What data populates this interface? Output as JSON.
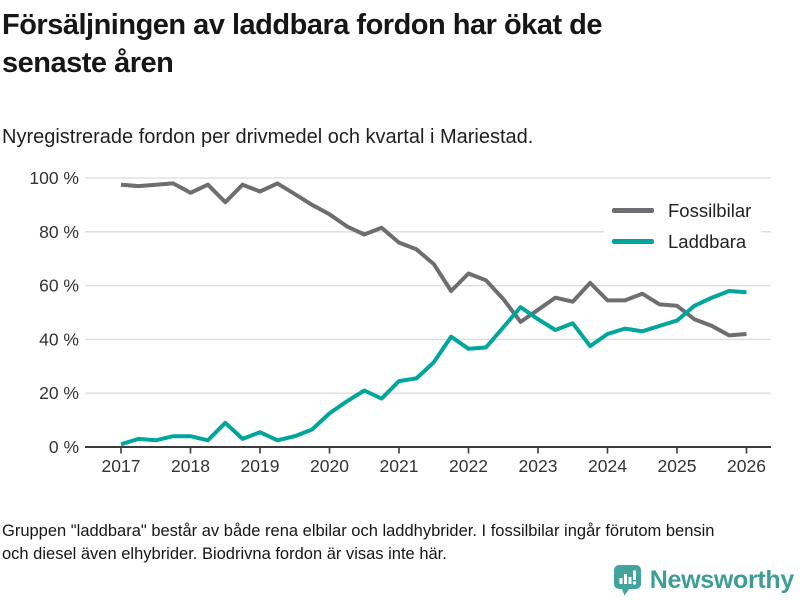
{
  "header": {
    "title_line1": "Försäljningen av laddbara fordon har ökat de",
    "title_line2": "senaste åren",
    "subtitle": "Nyregistrerade fordon per drivmedel och kvartal i Mariestad."
  },
  "chart_data": {
    "type": "line",
    "x": {
      "start": "2017 Q1",
      "end": "2026 Q1",
      "step": "quarter"
    },
    "x_tick_labels": [
      "2017",
      "2018",
      "2019",
      "2020",
      "2021",
      "2022",
      "2023",
      "2024",
      "2025",
      "2026"
    ],
    "y_ticks": [
      {
        "label": "100 %",
        "value": 100
      },
      {
        "label": "80 %",
        "value": 80
      },
      {
        "label": "60 %",
        "value": 60
      },
      {
        "label": "40 %",
        "value": 40
      },
      {
        "label": "20 %",
        "value": 20
      },
      {
        "label": "0 %",
        "value": 0
      }
    ],
    "ylim": [
      0,
      100
    ],
    "grid": true,
    "legend_position": "top-right",
    "series": [
      {
        "name": "Fossilbilar",
        "color": "#6d6d72",
        "values": [
          97.5,
          97,
          97.5,
          98,
          94.5,
          97.5,
          91,
          97.5,
          95,
          98,
          94,
          90,
          86.5,
          82,
          79,
          81.5,
          76,
          73.5,
          68,
          58,
          64.5,
          62,
          55,
          46.5,
          51,
          55.5,
          54,
          61,
          54.5,
          54.5,
          57,
          53,
          52.5,
          47.5,
          45,
          41.5,
          42
        ]
      },
      {
        "name": "Laddbara",
        "color": "#00a59c",
        "values": [
          1,
          3,
          2.5,
          4,
          4,
          2.5,
          9,
          3,
          5.5,
          2.5,
          4,
          6.5,
          12.5,
          17,
          21,
          18,
          24.5,
          25.5,
          31.5,
          41,
          36.5,
          37,
          44.5,
          52,
          47.5,
          43.5,
          46,
          37.5,
          42,
          44,
          43,
          45,
          47,
          52.5,
          55.5,
          58,
          57.5
        ]
      }
    ]
  },
  "footer": {
    "note_line1": "Gruppen \"laddbara\" består av både rena elbilar och laddhybrider. I fossilbilar ingår förutom bensin",
    "note_line2": "och diesel även elhybrider. Biodrivna fordon är visas inte här.",
    "brand_name": "Newsworthy",
    "brand_color": "#3f9d98"
  },
  "style": {
    "grid_color": "#dcdcdc",
    "axis_color": "#3b3b3b",
    "tick_text_color": "#333333"
  }
}
